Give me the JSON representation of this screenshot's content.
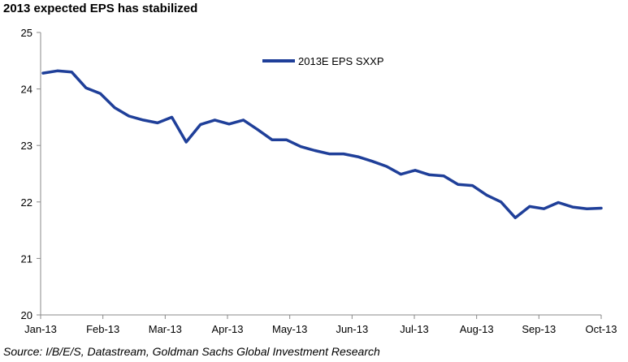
{
  "title": "2013 expected EPS has stabilized",
  "source": "Source: I/B/E/S, Datastream, Goldman Sachs Global Investment Research",
  "colors": {
    "series": "#1f3f99",
    "axis": "#888888"
  },
  "chart_data": {
    "type": "line",
    "title": "2013 expected EPS has stabilized",
    "xlabel": "",
    "ylabel": "",
    "ylim": [
      20,
      25
    ],
    "yticks": [
      20,
      21,
      22,
      23,
      24,
      25
    ],
    "xticks": [
      "Jan-13",
      "Feb-13",
      "Mar-13",
      "Apr-13",
      "May-13",
      "Jun-13",
      "Jul-13",
      "Aug-13",
      "Sep-13",
      "Oct-13"
    ],
    "grid": false,
    "legend": "top-center",
    "series": [
      {
        "name": "2013E EPS SXXP",
        "color": "#1f3f99",
        "values": [
          24.28,
          24.32,
          24.3,
          24.02,
          23.92,
          23.67,
          23.52,
          23.45,
          23.4,
          23.5,
          23.06,
          23.37,
          23.45,
          23.38,
          23.45,
          23.28,
          23.1,
          23.1,
          22.98,
          22.91,
          22.85,
          22.85,
          22.8,
          22.72,
          22.63,
          22.49,
          22.56,
          22.48,
          22.46,
          22.31,
          22.29,
          22.12,
          22.0,
          21.72,
          21.92,
          21.88,
          21.99,
          21.91,
          21.88,
          21.89
        ]
      }
    ]
  }
}
